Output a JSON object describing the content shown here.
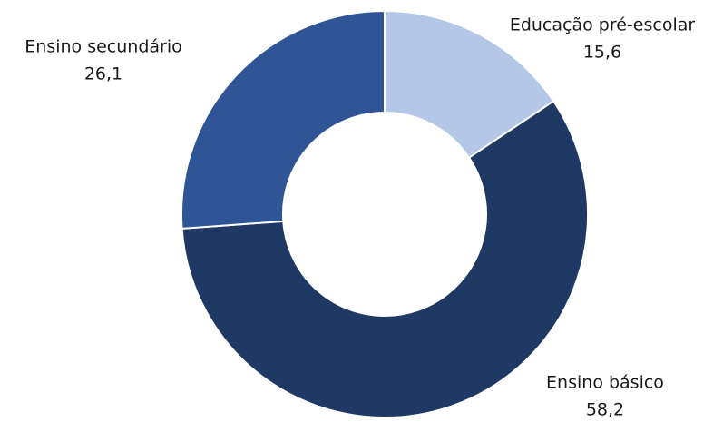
{
  "chart_data": {
    "type": "pie",
    "variant": "donut",
    "title": "",
    "decimal_separator": ",",
    "slices": [
      {
        "label": "Educação pré-escolar",
        "value": 15.6,
        "color": "#b4c7e7"
      },
      {
        "label": "Ensino básico",
        "value": 58.2,
        "color": "#203864"
      },
      {
        "label": "Ensino secundário",
        "value": 26.1,
        "color": "#2f5597"
      }
    ],
    "start_angle": "12 o'clock",
    "direction": "clockwise",
    "legend": "none",
    "data_labels": "outside, category name and value"
  }
}
